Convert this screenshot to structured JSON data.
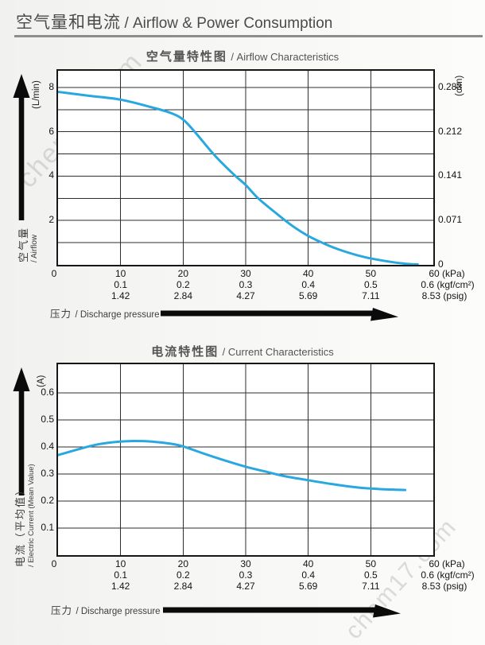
{
  "page": {
    "header": {
      "title_zh": "空气量和电流",
      "title_en": "/ Airflow & Power Consumption"
    },
    "watermark": "chem17.com"
  },
  "chart_data": [
    {
      "type": "line",
      "title_zh": "空气量特性图",
      "title_en": "/ Airflow Characteristics",
      "grid": true,
      "legend": "none",
      "xlim": [
        0,
        60
      ],
      "ylim_left": [
        0,
        8.75
      ],
      "x_grid_kpa": [
        10,
        20,
        30,
        40,
        50
      ],
      "y_grid": [
        1,
        2,
        3,
        4,
        5,
        6,
        7,
        8
      ],
      "x_axis": {
        "label_zh": "压力",
        "label_en": "/ Discharge pressure",
        "rows": [
          {
            "unit": "(kPa)",
            "ticks": [
              "0",
              "10",
              "20",
              "30",
              "40",
              "50",
              "60"
            ]
          },
          {
            "unit": "(kgf/cm²)",
            "ticks": [
              "0.1",
              "0.2",
              "0.3",
              "0.4",
              "0.5",
              "0.6"
            ]
          },
          {
            "unit": "(psig)",
            "ticks": [
              "1.42",
              "2.84",
              "4.27",
              "5.69",
              "7.11",
              "8.53"
            ]
          }
        ]
      },
      "y_axis_left": {
        "unit": "(L/min)",
        "label_zh": "空气量",
        "label_en": "/ Airflow",
        "ticks": [
          {
            "v": 8,
            "label": "8"
          },
          {
            "v": 6,
            "label": "6"
          },
          {
            "v": 4,
            "label": "4"
          },
          {
            "v": 2,
            "label": "2"
          }
        ]
      },
      "y_axis_right": {
        "unit": "(cfm)",
        "ticks": [
          {
            "v": 8,
            "label": "0.283"
          },
          {
            "v": 6,
            "label": "0.212"
          },
          {
            "v": 4,
            "label": "0.141"
          },
          {
            "v": 2,
            "label": "0.071"
          },
          {
            "v": 0,
            "label": "0"
          }
        ]
      },
      "series": [
        {
          "name": "airflow",
          "color": "#29a8e0",
          "points": [
            [
              0,
              7.8
            ],
            [
              5,
              7.62
            ],
            [
              10,
              7.45
            ],
            [
              15,
              7.1
            ],
            [
              18,
              6.85
            ],
            [
              20,
              6.55
            ],
            [
              22,
              5.95
            ],
            [
              25,
              4.95
            ],
            [
              28,
              4.1
            ],
            [
              30,
              3.6
            ],
            [
              32,
              3.0
            ],
            [
              35,
              2.3
            ],
            [
              37.5,
              1.75
            ],
            [
              40,
              1.3
            ],
            [
              43,
              0.9
            ],
            [
              45,
              0.68
            ],
            [
              48,
              0.42
            ],
            [
              50.5,
              0.26
            ],
            [
              54,
              0.1
            ],
            [
              56.5,
              0.03
            ],
            [
              57.5,
              0.02
            ]
          ]
        }
      ]
    },
    {
      "type": "line",
      "title_zh": "电流特性图",
      "title_en": "/ Current Characteristics",
      "grid": true,
      "legend": "none",
      "xlim": [
        0,
        60
      ],
      "ylim_left": [
        0,
        0.706
      ],
      "x_grid_kpa": [
        10,
        20,
        30,
        40,
        50
      ],
      "y_grid": [
        0.1,
        0.2,
        0.3,
        0.4,
        0.5,
        0.6
      ],
      "x_axis": {
        "label_zh": "压力",
        "label_en": "/ Discharge pressure",
        "rows": [
          {
            "unit": "(kPa)",
            "ticks": [
              "0",
              "10",
              "20",
              "30",
              "40",
              "50",
              "60"
            ]
          },
          {
            "unit": "(kgf/cm²)",
            "ticks": [
              "0.1",
              "0.2",
              "0.3",
              "0.4",
              "0.5",
              "0.6"
            ]
          },
          {
            "unit": "(psig)",
            "ticks": [
              "1.42",
              "2.84",
              "4.27",
              "5.69",
              "7.11",
              "8.53"
            ]
          }
        ]
      },
      "y_axis_left": {
        "unit": "(A)",
        "label_zh": "电流（平均值）",
        "label_en": "/ Electric Current (Mean Value)",
        "ticks": [
          {
            "v": 0.6,
            "label": "0.6"
          },
          {
            "v": 0.5,
            "label": "0.5"
          },
          {
            "v": 0.4,
            "label": "0.4"
          },
          {
            "v": 0.3,
            "label": "0.3"
          },
          {
            "v": 0.2,
            "label": "0.2"
          },
          {
            "v": 0.1,
            "label": "0.1"
          }
        ]
      },
      "series": [
        {
          "name": "electric-current",
          "color": "#29a8e0",
          "points": [
            [
              0,
              0.37
            ],
            [
              3,
              0.39
            ],
            [
              6,
              0.408
            ],
            [
              9,
              0.418
            ],
            [
              12,
              0.422
            ],
            [
              15,
              0.42
            ],
            [
              18,
              0.412
            ],
            [
              20,
              0.402
            ],
            [
              23,
              0.378
            ],
            [
              26,
              0.355
            ],
            [
              30,
              0.327
            ],
            [
              33,
              0.31
            ],
            [
              36,
              0.293
            ],
            [
              40,
              0.277
            ],
            [
              44,
              0.262
            ],
            [
              48,
              0.25
            ],
            [
              51,
              0.245
            ],
            [
              54,
              0.242
            ],
            [
              55.5,
              0.241
            ]
          ]
        }
      ]
    }
  ]
}
